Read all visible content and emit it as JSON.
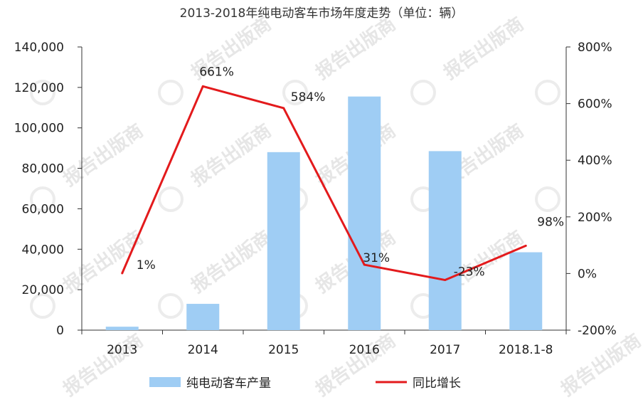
{
  "chart_data": {
    "type": "bar",
    "title": "2013-2018年纯电动客车市场年度走势（单位：辆）",
    "categories": [
      "2013",
      "2014",
      "2015",
      "2016",
      "2017",
      "2018.1-8"
    ],
    "series": [
      {
        "name": "纯电动客车产量",
        "type": "bar",
        "axis": "left",
        "color": "#9fcdf4",
        "values": [
          1700,
          13000,
          88000,
          115500,
          88500,
          38500
        ]
      },
      {
        "name": "同比增长",
        "type": "line",
        "axis": "right",
        "color": "#e31a1c",
        "values": [
          1,
          661,
          584,
          31,
          -23,
          98
        ],
        "labels": [
          "1%",
          "661%",
          "584%",
          "31%",
          "-23%",
          "98%"
        ]
      }
    ],
    "y_left": {
      "range": [
        0,
        140000
      ],
      "ticks": [
        0,
        20000,
        40000,
        60000,
        80000,
        100000,
        120000,
        140000
      ],
      "tick_labels": [
        "0",
        "20,000",
        "40,000",
        "60,000",
        "80,000",
        "100,000",
        "120,000",
        "140,000"
      ]
    },
    "y_right": {
      "range": [
        -200,
        800
      ],
      "ticks": [
        -200,
        0,
        200,
        400,
        600,
        800
      ],
      "tick_labels": [
        "-200%",
        "0%",
        "200%",
        "400%",
        "600%",
        "800%"
      ]
    },
    "grid": false,
    "legend_position": "bottom",
    "watermark": "报告出版商"
  }
}
